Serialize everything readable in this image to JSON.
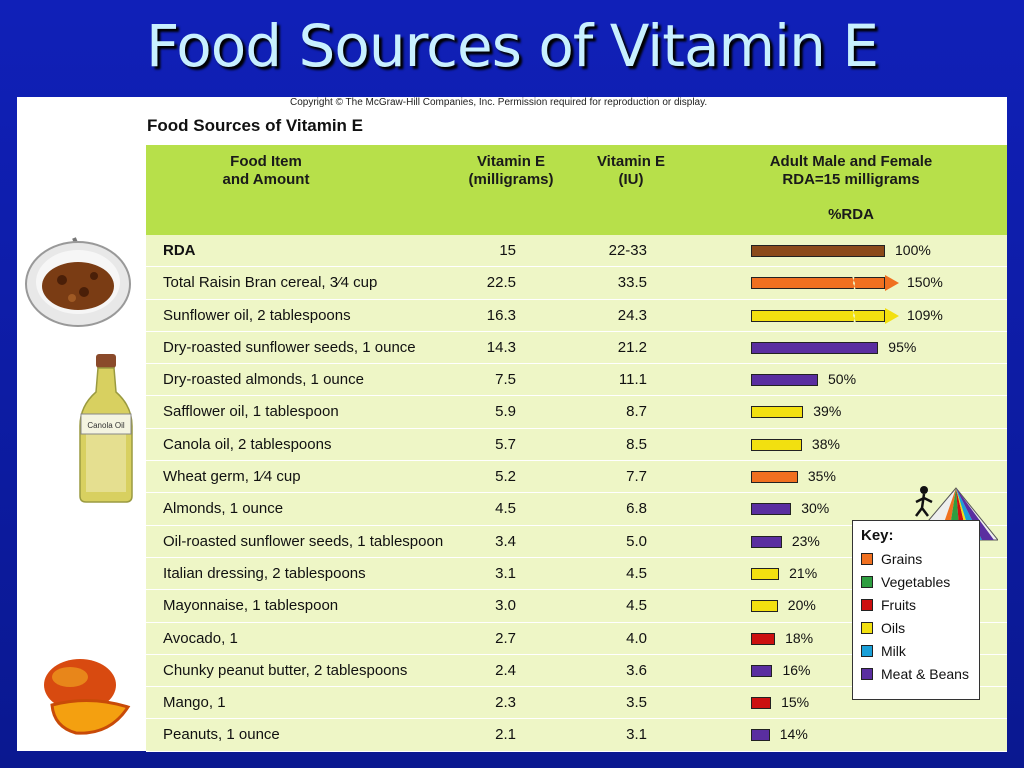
{
  "slide": {
    "title": "Food Sources of Vitamin E"
  },
  "figure": {
    "copyright": "Copyright © The McGraw-Hill Companies, Inc. Permission required for reproduction or display.",
    "table_title": "Food Sources of Vitamin E",
    "bottle_label": "Canola Oil"
  },
  "headers": {
    "food": "Food Item\nand Amount",
    "mg": "Vitamin E\n(milligrams)",
    "iu": "Vitamin E\n(IU)",
    "rda": "Adult Male and Female\nRDA=15 milligrams",
    "pct": "%RDA"
  },
  "colors": {
    "rda": "#8b4a1a",
    "Grains": "#f07020",
    "Vegetables": "#2e9e40",
    "Fruits": "#cc1010",
    "Oils": "#f2e010",
    "Milk": "#1aa0d8",
    "Meat & Beans": "#5a2ea0"
  },
  "key": {
    "title": "Key:",
    "items": [
      "Grains",
      "Vegetables",
      "Fruits",
      "Oils",
      "Milk",
      "Meat & Beans"
    ]
  },
  "chart_data": {
    "type": "table",
    "columns": [
      "Food Item and Amount",
      "Vitamin E (milligrams)",
      "Vitamin E (IU)",
      "%RDA"
    ],
    "rows": [
      {
        "food": "RDA",
        "mg": "15",
        "iu": "22-33",
        "pct": 100,
        "pct_label": "100%",
        "group": "rda",
        "bold": true
      },
      {
        "food": "Total Raisin Bran cereal, 3⁄4 cup",
        "mg": "22.5",
        "iu": "33.5",
        "pct": 150,
        "pct_label": "150%",
        "group": "Grains",
        "broken": true
      },
      {
        "food": "Sunflower oil, 2 tablespoons",
        "mg": "16.3",
        "iu": "24.3",
        "pct": 109,
        "pct_label": "109%",
        "group": "Oils",
        "broken": true
      },
      {
        "food": "Dry-roasted sunflower seeds, 1 ounce",
        "mg": "14.3",
        "iu": "21.2",
        "pct": 95,
        "pct_label": "95%",
        "group": "Meat & Beans"
      },
      {
        "food": "Dry-roasted almonds, 1 ounce",
        "mg": "7.5",
        "iu": "11.1",
        "pct": 50,
        "pct_label": "50%",
        "group": "Meat & Beans"
      },
      {
        "food": "Safflower oil, 1 tablespoon",
        "mg": "5.9",
        "iu": "8.7",
        "pct": 39,
        "pct_label": "39%",
        "group": "Oils"
      },
      {
        "food": "Canola oil, 2 tablespoons",
        "mg": "5.7",
        "iu": "8.5",
        "pct": 38,
        "pct_label": "38%",
        "group": "Oils"
      },
      {
        "food": "Wheat germ, 1⁄4 cup",
        "mg": "5.2",
        "iu": "7.7",
        "pct": 35,
        "pct_label": "35%",
        "group": "Grains"
      },
      {
        "food": "Almonds, 1 ounce",
        "mg": "4.5",
        "iu": "6.8",
        "pct": 30,
        "pct_label": "30%",
        "group": "Meat & Beans"
      },
      {
        "food": "Oil-roasted sunflower seeds, 1 tablespoon",
        "mg": "3.4",
        "iu": "5.0",
        "pct": 23,
        "pct_label": "23%",
        "group": "Meat & Beans"
      },
      {
        "food": "Italian dressing, 2 tablespoons",
        "mg": "3.1",
        "iu": "4.5",
        "pct": 21,
        "pct_label": "21%",
        "group": "Oils"
      },
      {
        "food": "Mayonnaise, 1 tablespoon",
        "mg": "3.0",
        "iu": "4.5",
        "pct": 20,
        "pct_label": "20%",
        "group": "Oils"
      },
      {
        "food": "Avocado, 1",
        "mg": "2.7",
        "iu": "4.0",
        "pct": 18,
        "pct_label": "18%",
        "group": "Fruits"
      },
      {
        "food": "Chunky peanut butter, 2 tablespoons",
        "mg": "2.4",
        "iu": "3.6",
        "pct": 16,
        "pct_label": "16%",
        "group": "Meat & Beans"
      },
      {
        "food": "Mango, 1",
        "mg": "2.3",
        "iu": "3.5",
        "pct": 15,
        "pct_label": "15%",
        "group": "Fruits"
      },
      {
        "food": "Peanuts, 1 ounce",
        "mg": "2.1",
        "iu": "3.1",
        "pct": 14,
        "pct_label": "14%",
        "group": "Meat & Beans"
      }
    ]
  }
}
